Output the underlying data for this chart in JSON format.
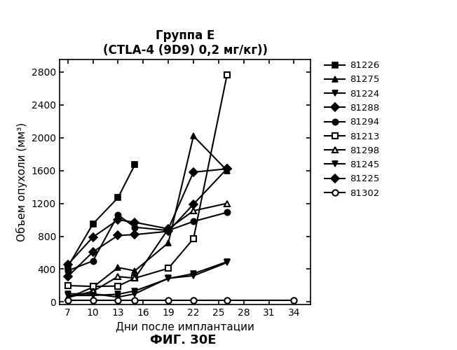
{
  "title_line1": "Группа E",
  "title_line2": "(CTLA-4 (9D9) 0,2 мг/кг))",
  "xlabel": "Дни после имплантации",
  "ylabel": "Объем опухоли (мм³)",
  "fig_label": "ФИГ. 30E",
  "xticks": [
    7,
    10,
    13,
    16,
    19,
    22,
    25,
    28,
    31,
    34
  ],
  "yticks": [
    0,
    400,
    800,
    1200,
    1600,
    2000,
    2400,
    2800
  ],
  "xlim": [
    6.0,
    36.0
  ],
  "ylim": [
    -30,
    2950
  ],
  "series": [
    {
      "label": "81226",
      "marker": "s",
      "filled": true,
      "x": [
        7,
        10,
        13,
        15
      ],
      "y": [
        430,
        950,
        1270,
        1670
      ]
    },
    {
      "label": "81275",
      "marker": "^",
      "filled": true,
      "x": [
        7,
        10,
        13,
        15,
        19,
        22,
        26
      ],
      "y": [
        50,
        180,
        420,
        380,
        720,
        2020,
        1600
      ]
    },
    {
      "label": "81224",
      "marker": "v",
      "filled": true,
      "x": [
        7,
        10,
        13,
        15,
        19,
        22,
        26
      ],
      "y": [
        100,
        100,
        60,
        100,
        290,
        320,
        480
      ]
    },
    {
      "label": "81288",
      "marker": "D",
      "filled": true,
      "x": [
        7,
        10,
        13,
        15,
        19,
        22,
        26
      ],
      "y": [
        310,
        610,
        810,
        820,
        860,
        1190,
        1620
      ]
    },
    {
      "label": "81294",
      "marker": "o",
      "filled": true,
      "x": [
        7,
        10,
        13,
        15,
        19,
        22,
        26
      ],
      "y": [
        380,
        500,
        1060,
        910,
        870,
        980,
        1090
      ]
    },
    {
      "label": "81213",
      "marker": "s",
      "filled": false,
      "x": [
        7,
        10,
        13,
        15,
        19,
        22,
        26
      ],
      "y": [
        200,
        190,
        195,
        290,
        410,
        770,
        2760
      ]
    },
    {
      "label": "81298",
      "marker": "^",
      "filled": false,
      "x": [
        7,
        10,
        13,
        15,
        19,
        22,
        26
      ],
      "y": [
        55,
        130,
        310,
        290,
        890,
        1110,
        1200
      ]
    },
    {
      "label": "81245",
      "marker": "v",
      "filled": true,
      "x": [
        7,
        10,
        13,
        15,
        19,
        22,
        26
      ],
      "y": [
        80,
        80,
        95,
        135,
        285,
        345,
        490
      ]
    },
    {
      "label": "81225",
      "marker": "D",
      "filled": true,
      "x": [
        7,
        10,
        13,
        15,
        19,
        22,
        26
      ],
      "y": [
        455,
        790,
        1000,
        970,
        890,
        1580,
        1620
      ]
    },
    {
      "label": "81302",
      "marker": "o",
      "filled": false,
      "x": [
        7,
        10,
        13,
        15,
        19,
        22,
        26,
        34
      ],
      "y": [
        25,
        25,
        25,
        25,
        25,
        25,
        25,
        25
      ]
    }
  ]
}
